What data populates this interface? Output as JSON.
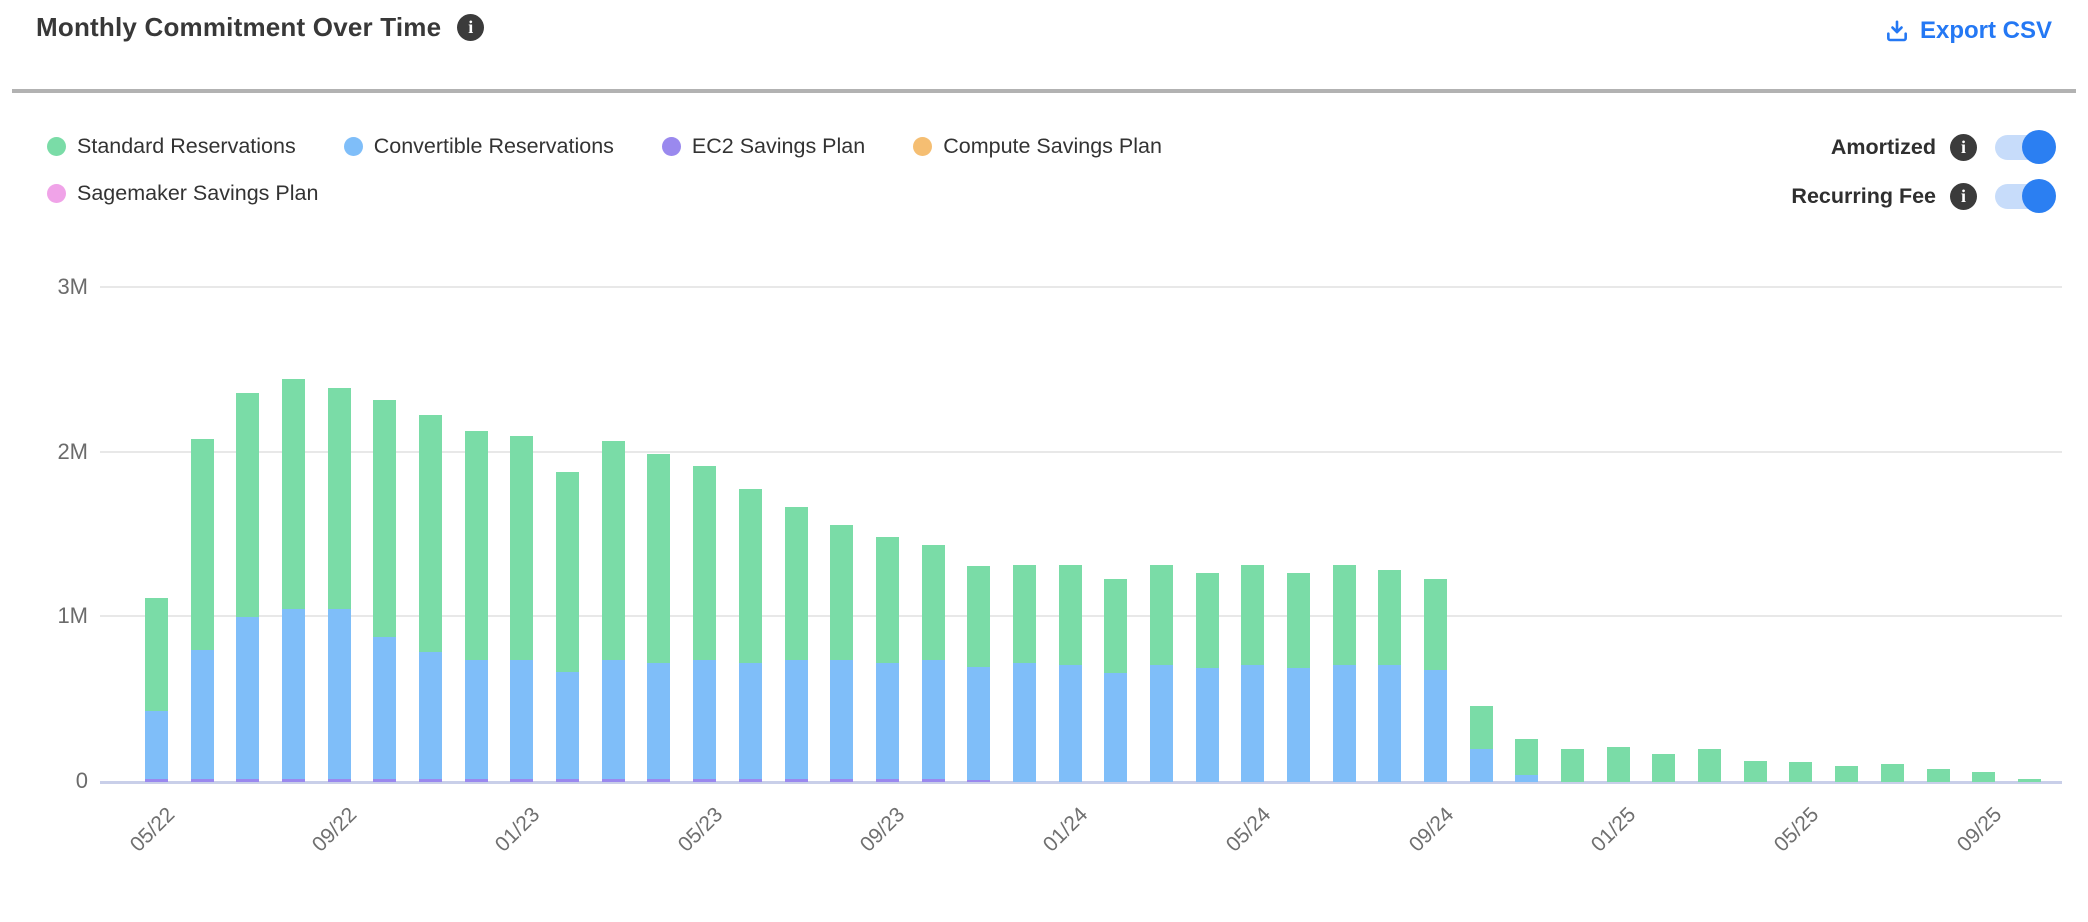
{
  "header": {
    "title": "Monthly Commitment Over Time",
    "title_info_icon": "info-icon",
    "export_label": "Export CSV",
    "export_icon": "download-icon"
  },
  "legend": {
    "items": [
      {
        "label": "Standard Reservations",
        "color": "#7adca7"
      },
      {
        "label": "Convertible Reservations",
        "color": "#7fbef9"
      },
      {
        "label": "EC2 Savings Plan",
        "color": "#9a89ee"
      },
      {
        "label": "Compute Savings Plan",
        "color": "#f5be72"
      },
      {
        "label": "Sagemaker Savings Plan",
        "color": "#f0a3e8"
      }
    ]
  },
  "toggles": [
    {
      "label": "Amortized",
      "info_icon": "info-icon",
      "state": "on"
    },
    {
      "label": "Recurring Fee",
      "info_icon": "info-icon",
      "state": "on"
    }
  ],
  "colors": {
    "accent_blue": "#2478f4",
    "toggle_track": "#c7dcfa",
    "toggle_knob": "#2b7ff2",
    "divider": "#b2b2b2",
    "gridline": "#e8e8e8",
    "axis_baseline": "#c9cfe9",
    "axis_text": "#6b6b6b"
  },
  "chart_data": {
    "type": "bar",
    "stacked": true,
    "title": "Monthly Commitment Over Time",
    "xlabel": "",
    "ylabel": "",
    "unit": "M",
    "ylim_millions": [
      0,
      3
    ],
    "y_ticks": [
      "0",
      "1M",
      "2M",
      "3M"
    ],
    "grid": "horizontal",
    "legend_position": "top-left",
    "categories": [
      "05/22",
      "06/22",
      "07/22",
      "08/22",
      "09/22",
      "10/22",
      "11/22",
      "12/22",
      "01/23",
      "02/23",
      "03/23",
      "04/23",
      "05/23",
      "06/23",
      "07/23",
      "08/23",
      "09/23",
      "10/23",
      "11/23",
      "12/23",
      "01/24",
      "02/24",
      "03/24",
      "04/24",
      "05/24",
      "06/24",
      "07/24",
      "08/24",
      "09/24",
      "10/24",
      "11/24",
      "12/24",
      "01/25",
      "02/25",
      "03/25",
      "04/25",
      "05/25",
      "06/25",
      "07/25",
      "08/25",
      "09/25",
      "10/25"
    ],
    "x_tick_indices": [
      0,
      4,
      8,
      12,
      16,
      20,
      24,
      28,
      32,
      36,
      40
    ],
    "x_tick_labels_shown": [
      "05/22",
      "09/22",
      "01/23",
      "05/23",
      "09/23",
      "01/24",
      "05/24",
      "09/24",
      "01/25",
      "05/25",
      "09/25"
    ],
    "values_unit": "millions",
    "series": [
      {
        "name": "Standard Reservations",
        "color": "#7adca7",
        "values": [
          0.69,
          1.28,
          1.36,
          1.4,
          1.34,
          1.44,
          1.44,
          1.39,
          1.36,
          1.21,
          1.33,
          1.27,
          1.18,
          1.06,
          0.93,
          0.82,
          0.77,
          0.7,
          0.61,
          0.6,
          0.61,
          0.57,
          0.61,
          0.58,
          0.61,
          0.58,
          0.61,
          0.58,
          0.55,
          0.26,
          0.22,
          0.2,
          0.21,
          0.17,
          0.2,
          0.13,
          0.12,
          0.1,
          0.11,
          0.08,
          0.06,
          0.02
        ]
      },
      {
        "name": "Convertible Reservations",
        "color": "#7fbef9",
        "values": [
          0.41,
          0.78,
          0.98,
          1.03,
          1.03,
          0.86,
          0.77,
          0.72,
          0.72,
          0.65,
          0.72,
          0.7,
          0.72,
          0.7,
          0.72,
          0.72,
          0.7,
          0.72,
          0.69,
          0.72,
          0.71,
          0.66,
          0.71,
          0.69,
          0.71,
          0.69,
          0.71,
          0.71,
          0.68,
          0.2,
          0.04,
          0,
          0,
          0,
          0,
          0,
          0,
          0,
          0,
          0,
          0,
          0
        ]
      },
      {
        "name": "EC2 Savings Plan",
        "color": "#9a89ee",
        "values": [
          0.02,
          0.02,
          0.02,
          0.02,
          0.02,
          0.02,
          0.02,
          0.02,
          0.02,
          0.02,
          0.02,
          0.02,
          0.02,
          0.02,
          0.02,
          0.02,
          0.02,
          0.02,
          0.01,
          0,
          0,
          0,
          0,
          0,
          0,
          0,
          0,
          0,
          0,
          0,
          0,
          0,
          0,
          0,
          0,
          0,
          0,
          0,
          0,
          0,
          0,
          0
        ]
      },
      {
        "name": "Compute Savings Plan",
        "color": "#f5be72",
        "values": [
          0,
          0,
          0,
          0,
          0,
          0,
          0,
          0,
          0,
          0,
          0,
          0,
          0,
          0,
          0,
          0,
          0,
          0,
          0,
          0,
          0,
          0,
          0,
          0,
          0,
          0,
          0,
          0,
          0,
          0,
          0,
          0,
          0,
          0,
          0,
          0,
          0,
          0,
          0,
          0,
          0,
          0
        ]
      },
      {
        "name": "Sagemaker Savings Plan",
        "color": "#f0a3e8",
        "values": [
          0,
          0,
          0,
          0,
          0,
          0,
          0,
          0,
          0,
          0,
          0,
          0,
          0,
          0,
          0,
          0,
          0,
          0,
          0,
          0,
          0,
          0,
          0,
          0,
          0,
          0,
          0,
          0,
          0,
          0,
          0,
          0,
          0,
          0,
          0,
          0,
          0,
          0,
          0,
          0,
          0,
          0
        ]
      }
    ],
    "stack_order_bottom_up": [
      4,
      2,
      3,
      1,
      0
    ]
  }
}
